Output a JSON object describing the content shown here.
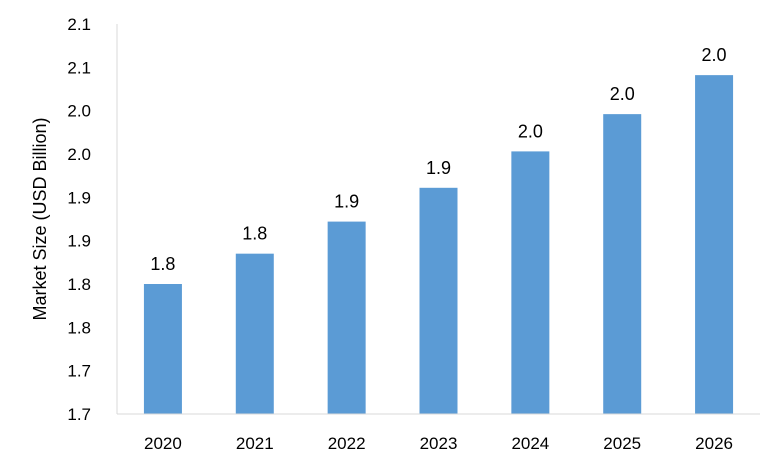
{
  "chart_data": {
    "type": "bar",
    "categories": [
      "2020",
      "2021",
      "2022",
      "2023",
      "2024",
      "2025",
      "2026"
    ],
    "values": [
      1.8,
      1.835,
      1.872,
      1.911,
      1.953,
      1.996,
      2.041
    ],
    "data_labels": [
      "1.8",
      "1.8",
      "1.9",
      "1.9",
      "2.0",
      "2.0",
      "2.0"
    ],
    "title": "",
    "xlabel": "",
    "ylabel": "Market Size (USD Billion)",
    "ylim": [
      1.65,
      2.1
    ],
    "yticks": [
      1.65,
      1.7,
      1.75,
      1.8,
      1.85,
      1.9,
      1.95,
      2.0,
      2.05,
      2.1
    ],
    "ytick_labels": [
      "1.7",
      "1.7",
      "1.8",
      "1.8",
      "1.9",
      "1.9",
      "2.0",
      "2.0",
      "2.1",
      "2.1"
    ],
    "grid": false,
    "legend": "none",
    "bar_color": "#5b9bd5",
    "axis_color": "#d9d9d9"
  }
}
